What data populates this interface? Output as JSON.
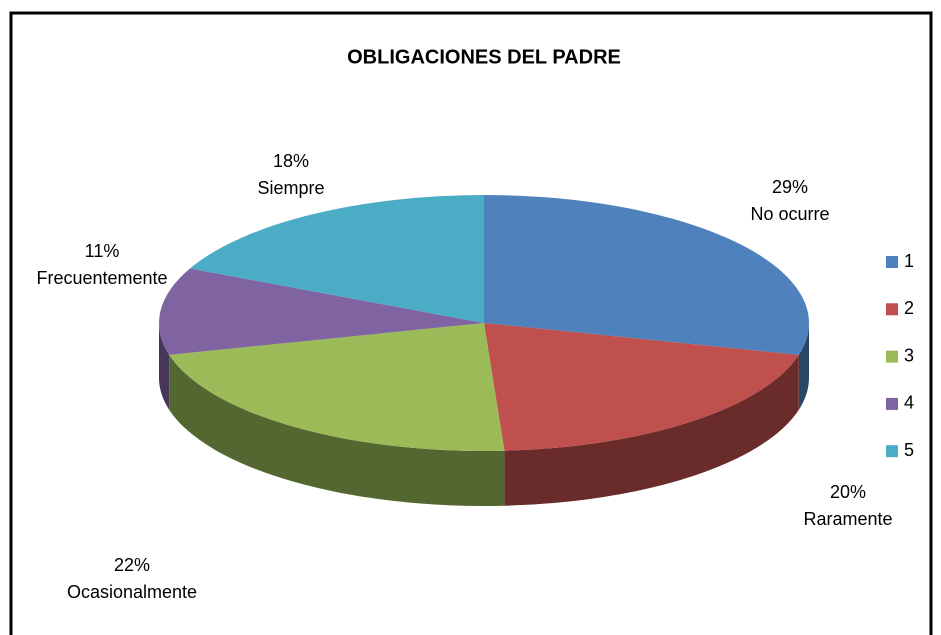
{
  "chart_data": {
    "type": "pie",
    "title": "OBLIGACIONES DEL PADRE",
    "categories": [
      "1",
      "2",
      "3",
      "4",
      "5"
    ],
    "values": [
      29,
      20,
      22,
      11,
      18
    ],
    "value_labels": [
      "29%",
      "20%",
      "22%",
      "11%",
      "18%"
    ],
    "labels": [
      "No ocurre",
      "Raramente",
      "Ocasionalmente",
      "Frecuentemente",
      "Siempre"
    ],
    "colors": [
      "#4f81bd",
      "#c0504d",
      "#9bbb59",
      "#8064a2",
      "#4bacc6"
    ],
    "legend": "right"
  }
}
